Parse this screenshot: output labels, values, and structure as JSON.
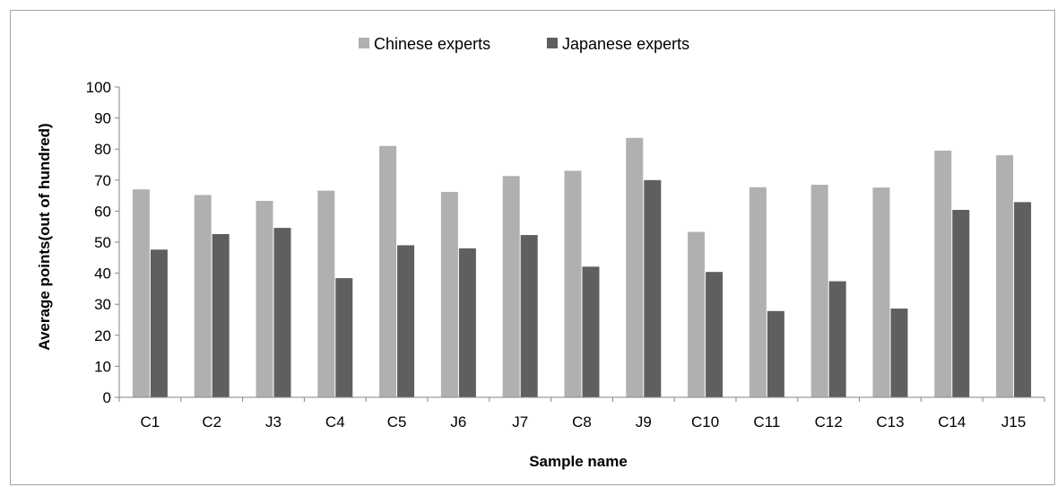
{
  "chart_data": {
    "type": "bar",
    "categories": [
      "C1",
      "C2",
      "J3",
      "C4",
      "C5",
      "J6",
      "J7",
      "C8",
      "J9",
      "C10",
      "C11",
      "C12",
      "C13",
      "C14",
      "J15"
    ],
    "series": [
      {
        "name": "Chinese experts",
        "color": "#b0b0b0",
        "values": [
          67,
          65.2,
          63.3,
          66.6,
          81,
          66.2,
          71.3,
          73,
          83.6,
          53.3,
          67.7,
          68.5,
          67.6,
          79.5,
          78
        ]
      },
      {
        "name": "Japanese experts",
        "color": "#5f5f5f",
        "values": [
          47.6,
          52.6,
          54.6,
          38.4,
          49,
          48,
          52.3,
          42.1,
          70,
          40.4,
          27.8,
          37.4,
          28.6,
          60.4,
          62.9
        ]
      }
    ],
    "title": "",
    "xlabel": "Sample name",
    "ylabel": "Average points(out of hundred)",
    "ylim": [
      0,
      100
    ],
    "yticks": [
      0,
      10,
      20,
      30,
      40,
      50,
      60,
      70,
      80,
      90,
      100
    ],
    "grid": false,
    "legend_position": "top"
  }
}
